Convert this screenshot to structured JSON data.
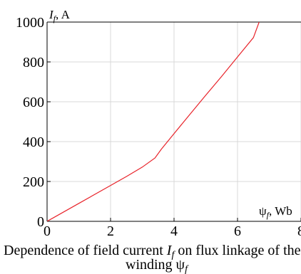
{
  "chart_data": {
    "type": "line",
    "ylabel_symbol": "I",
    "ylabel_sub": "f",
    "ylabel_unit": ", A",
    "xlabel_symbol": "ψ",
    "xlabel_sub": "f",
    "xlabel_unit": ", Wb",
    "xlim": [
      0,
      8
    ],
    "ylim": [
      0,
      1000
    ],
    "x_ticks": [
      0,
      2,
      4,
      6,
      8
    ],
    "y_ticks": [
      0,
      200,
      400,
      600,
      800,
      1000
    ],
    "grid": true,
    "series": [
      {
        "color": "#e8232a",
        "points": [
          [
            0,
            0
          ],
          [
            1,
            90
          ],
          [
            2,
            180
          ],
          [
            2.5,
            225
          ],
          [
            3.0,
            272
          ],
          [
            3.4,
            318
          ],
          [
            3.6,
            362
          ],
          [
            4.0,
            440
          ],
          [
            4.5,
            537
          ],
          [
            5.0,
            633
          ],
          [
            5.5,
            728
          ],
          [
            6.0,
            825
          ],
          [
            6.5,
            922
          ],
          [
            6.68,
            1000
          ]
        ]
      }
    ],
    "caption": {
      "line1_prefix": "Dependence of field current ",
      "line1_symbol": "I",
      "line1_sub": "f",
      "line1_suffix": " on flux linkage of the field",
      "line2_prefix": "winding ψ",
      "line2_sub": "f"
    }
  }
}
